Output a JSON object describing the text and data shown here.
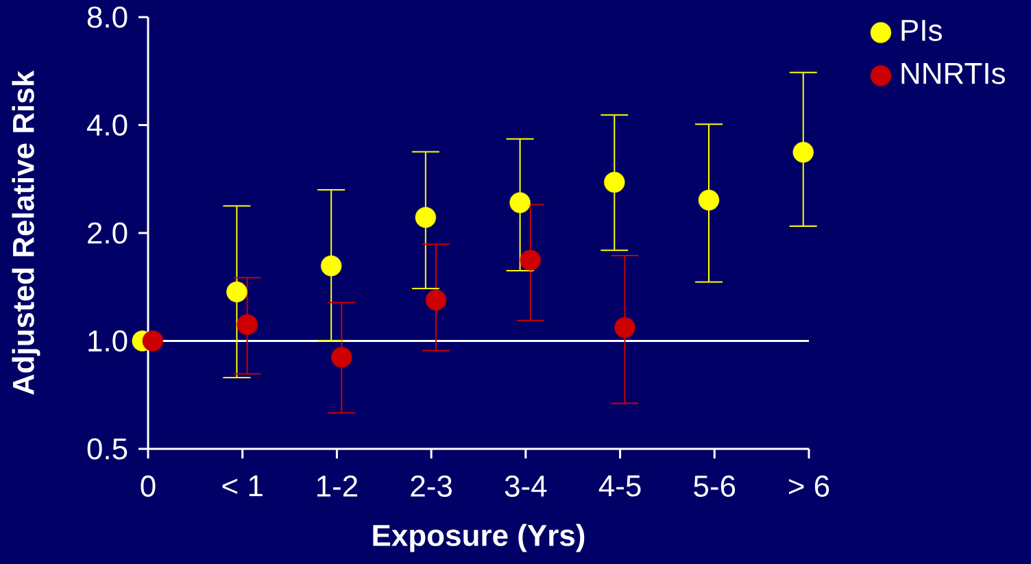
{
  "chart_data": {
    "type": "scatter",
    "xlabel": "Exposure (Yrs)",
    "ylabel": "Adjusted Relative Risk",
    "categories": [
      "0",
      "< 1",
      "1-2",
      "2-3",
      "3-4",
      "4-5",
      "5-6",
      "> 6"
    ],
    "log": "y",
    "ylim": [
      0.5,
      8
    ],
    "yticks": [
      {
        "value": 0.5,
        "label": "0.5"
      },
      {
        "value": 1,
        "label": "1.0"
      },
      {
        "value": 2,
        "label": "2.0"
      },
      {
        "value": 4,
        "label": "4.0"
      },
      {
        "value": 8,
        "label": "8.0"
      }
    ],
    "marker": "circle",
    "legend": "top right",
    "ref_lines": [
      {
        "axis": "y",
        "value": 1,
        "color": "#ffffff"
      }
    ],
    "series": [
      {
        "name": "PIs",
        "color": "#ffff00",
        "values": [
          1.0,
          1.37,
          1.62,
          2.21,
          2.43,
          2.77,
          2.47,
          3.36
        ],
        "errors": [
          null,
          [
            0.79,
            2.38
          ],
          [
            1.0,
            2.64
          ],
          [
            1.4,
            3.37
          ],
          [
            1.57,
            3.66
          ],
          [
            1.79,
            4.27
          ],
          [
            1.46,
            4.02
          ],
          [
            2.09,
            5.61
          ]
        ]
      },
      {
        "name": "NNRTIs",
        "color": "#cc0000",
        "values": [
          1.0,
          1.11,
          0.9,
          1.3,
          1.68,
          1.09,
          null,
          null
        ],
        "errors": [
          null,
          [
            0.81,
            1.5
          ],
          [
            0.63,
            1.28
          ],
          [
            0.94,
            1.86
          ],
          [
            1.14,
            2.4
          ],
          [
            0.67,
            1.73
          ],
          null,
          null
        ]
      }
    ]
  }
}
